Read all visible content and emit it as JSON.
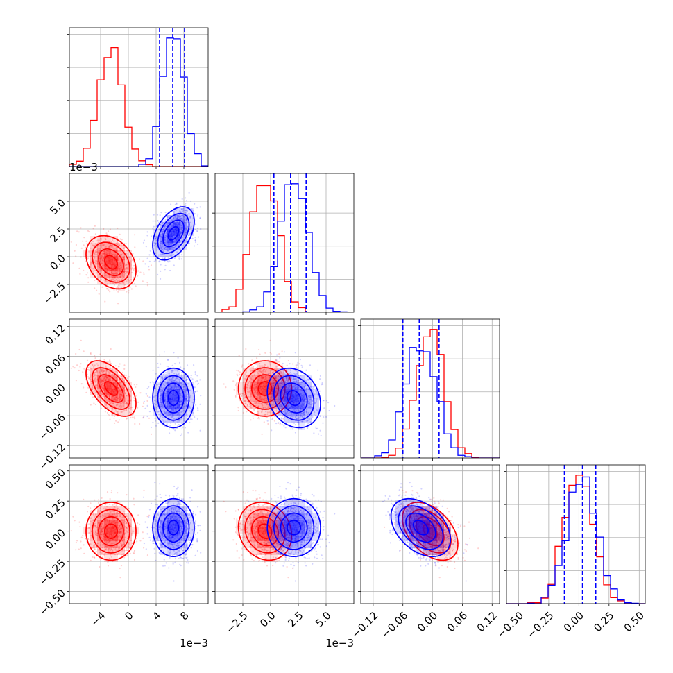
{
  "colors": {
    "series_a": "#ff0000",
    "series_b": "#0000ff",
    "grid": "#b0b0b0"
  },
  "chart_data": {
    "type": "corner",
    "n_params": 4,
    "grid": true,
    "series": [
      {
        "color": "#ff0000",
        "mean": [
          -0.0025,
          -0.0005,
          -0.005,
          0.0
        ],
        "std": [
          0.0018,
          0.0012,
          0.028,
          0.12
        ],
        "corr": [
          [
            0,
            1,
            -0.3
          ],
          [
            0,
            2,
            -0.55
          ],
          [
            2,
            3,
            -0.45
          ],
          [
            1,
            3,
            -0.15
          ]
        ]
      },
      {
        "color": "#0000ff",
        "mean": [
          0.0065,
          0.0021,
          -0.024,
          0.03
        ],
        "std": [
          0.0015,
          0.0012,
          0.03,
          0.12
        ],
        "corr": [
          [
            0,
            1,
            0.45
          ],
          [
            1,
            2,
            -0.2
          ],
          [
            2,
            3,
            -0.4
          ]
        ]
      }
    ],
    "quantile_lines": {
      "color": "#0000ff",
      "values": [
        [
          0.0045,
          0.0064,
          0.0081
        ],
        [
          0.0003,
          0.0018,
          0.0032
        ],
        [
          -0.06,
          -0.027,
          0.013
        ],
        [
          -0.12,
          0.03,
          0.14
        ]
      ]
    },
    "axes": [
      {
        "range": [
          -0.0085,
          0.0115
        ],
        "ticks": [
          -0.004,
          0.0,
          0.004,
          0.008
        ],
        "tick_labels": [
          "−4",
          "0",
          "4",
          "8"
        ],
        "offset": "1e−3"
      },
      {
        "range": [
          -0.005,
          0.0075
        ],
        "ticks": [
          -0.0025,
          0.0,
          0.0025,
          0.005
        ],
        "tick_labels": [
          "−2.5",
          "0.0",
          "2.5",
          "5.0"
        ],
        "offset": "1e−3"
      },
      {
        "range": [
          -0.145,
          0.135
        ],
        "ticks": [
          -0.12,
          -0.06,
          0.0,
          0.06,
          0.12
        ],
        "tick_labels": [
          "−0.12",
          "−0.06",
          "0.00",
          "0.06",
          "0.12"
        ],
        "offset": ""
      },
      {
        "range": [
          -0.6,
          0.55
        ],
        "ticks": [
          -0.5,
          -0.25,
          0.0,
          0.25,
          0.5
        ],
        "tick_labels": [
          "−0.50",
          "−0.25",
          "0.00",
          "0.25",
          "0.50"
        ],
        "offset": ""
      }
    ]
  }
}
